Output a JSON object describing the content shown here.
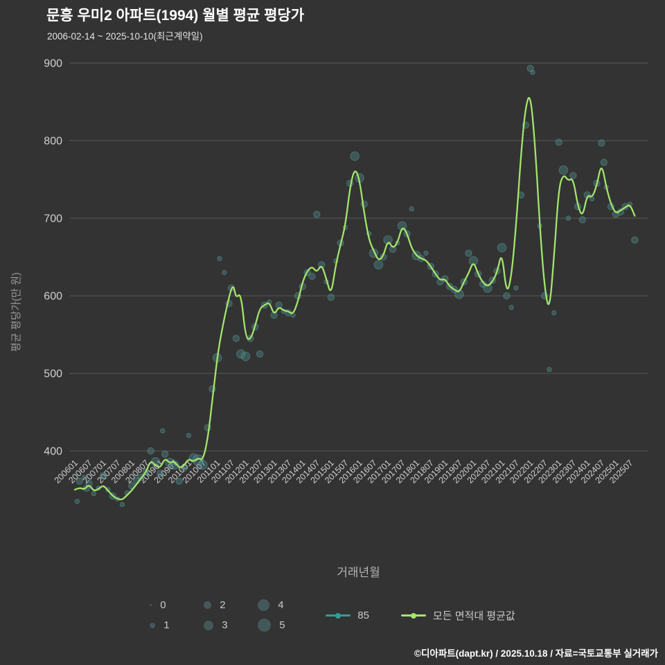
{
  "header": {
    "title": "문흥 우미2 아파트(1994) 월별 평균 평당가",
    "subtitle": "2006-02-14 ~ 2025-10-10(최근계약일)"
  },
  "axes": {
    "x_title": "거래년월",
    "y_title": "평균 평당가(만 원)"
  },
  "legend": {
    "sizes": [
      "0",
      "1",
      "2",
      "3",
      "4",
      "5"
    ],
    "series": [
      {
        "label": "85",
        "color": "#2f9e96"
      },
      {
        "label": "모든 면적대 평균값",
        "color": "#a3e56b"
      }
    ]
  },
  "footer": {
    "credit": "©디아파트(dapt.kr) / 2025.10.18 / 자료=국토교통부 실거래가"
  },
  "colors": {
    "background": "#333333",
    "grid": "#575757",
    "tick_text": "#d0d0d0",
    "bubble_fill": "rgba(73,139,139,0.42)",
    "bubble_stroke": "rgba(130,200,200,0.30)",
    "avg_line": "#a3e56b"
  },
  "chart_data": {
    "type": "line",
    "title": "문흥 우미2 아파트(1994) 월별 평균 평당가",
    "subtitle": "2006-02-14 ~ 2025-10-10(최근계약일)",
    "xlabel": "거래년월",
    "ylabel": "평균 평당가(만 원)",
    "ylim": [
      300,
      910
    ],
    "yticks": [
      400,
      500,
      600,
      700,
      800,
      900
    ],
    "grid": true,
    "legend_position": "bottom",
    "xticks": [
      "200601",
      "200607",
      "200701",
      "200707",
      "200801",
      "200807",
      "200901",
      "200907",
      "201001",
      "201007",
      "201101",
      "201107",
      "201201",
      "201207",
      "201301",
      "201307",
      "201401",
      "201407",
      "201501",
      "201507",
      "201601",
      "201607",
      "201701",
      "201707",
      "201801",
      "201807",
      "201901",
      "201907",
      "202001",
      "202007",
      "202101",
      "202107",
      "202201",
      "202207",
      "202301",
      "202307",
      "202401",
      "202407",
      "202501",
      "202507"
    ],
    "series": [
      {
        "name": "85",
        "type": "bubble",
        "note": "bubble size = transaction count 0-5",
        "points": [
          [
            "200602",
            335,
            1
          ],
          [
            "200603",
            361,
            2
          ],
          [
            "200605",
            366,
            1
          ],
          [
            "200606",
            352,
            2
          ],
          [
            "200607",
            358,
            2
          ],
          [
            "200609",
            345,
            1
          ],
          [
            "200611",
            352,
            1
          ],
          [
            "200701",
            368,
            2
          ],
          [
            "200703",
            350,
            1
          ],
          [
            "200705",
            342,
            2
          ],
          [
            "200707",
            338,
            1
          ],
          [
            "200709",
            331,
            1
          ],
          [
            "200711",
            346,
            1
          ],
          [
            "200801",
            355,
            2
          ],
          [
            "200803",
            362,
            2
          ],
          [
            "200805",
            366,
            2
          ],
          [
            "200807",
            373,
            2
          ],
          [
            "200809",
            400,
            2
          ],
          [
            "200811",
            386,
            3
          ],
          [
            "200901",
            371,
            2
          ],
          [
            "200902",
            426,
            1
          ],
          [
            "200903",
            396,
            2
          ],
          [
            "200905",
            385,
            3
          ],
          [
            "200907",
            382,
            3
          ],
          [
            "200909",
            361,
            2
          ],
          [
            "200911",
            378,
            2
          ],
          [
            "201001",
            420,
            1
          ],
          [
            "201003",
            391,
            3
          ],
          [
            "201005",
            388,
            4
          ],
          [
            "201007",
            382,
            3
          ],
          [
            "201009",
            430,
            2
          ],
          [
            "201011",
            480,
            2
          ],
          [
            "201101",
            520,
            3
          ],
          [
            "201102",
            648,
            1
          ],
          [
            "201104",
            630,
            1
          ],
          [
            "201106",
            590,
            2
          ],
          [
            "201107",
            610,
            2
          ],
          [
            "201109",
            545,
            2
          ],
          [
            "201111",
            525,
            3
          ],
          [
            "201201",
            522,
            3
          ],
          [
            "201203",
            545,
            2
          ],
          [
            "201205",
            560,
            2
          ],
          [
            "201207",
            525,
            2
          ],
          [
            "201209",
            588,
            2
          ],
          [
            "201211",
            592,
            1
          ],
          [
            "201301",
            575,
            2
          ],
          [
            "201303",
            588,
            2
          ],
          [
            "201305",
            580,
            1
          ],
          [
            "201307",
            578,
            2
          ],
          [
            "201309",
            575,
            1
          ],
          [
            "201311",
            600,
            2
          ],
          [
            "201401",
            612,
            2
          ],
          [
            "201403",
            630,
            2
          ],
          [
            "201405",
            625,
            2
          ],
          [
            "201407",
            705,
            2
          ],
          [
            "201409",
            640,
            2
          ],
          [
            "201411",
            618,
            1
          ],
          [
            "201501",
            598,
            2
          ],
          [
            "201503",
            645,
            1
          ],
          [
            "201505",
            668,
            2
          ],
          [
            "201507",
            688,
            1
          ],
          [
            "201509",
            745,
            2
          ],
          [
            "201511",
            780,
            3
          ],
          [
            "201601",
            752,
            3
          ],
          [
            "201603",
            718,
            2
          ],
          [
            "201605",
            680,
            1
          ],
          [
            "201607",
            655,
            3
          ],
          [
            "201609",
            640,
            3
          ],
          [
            "201611",
            650,
            2
          ],
          [
            "201701",
            672,
            3
          ],
          [
            "201703",
            660,
            2
          ],
          [
            "201705",
            668,
            1
          ],
          [
            "201707",
            690,
            3
          ],
          [
            "201709",
            680,
            2
          ],
          [
            "201711",
            712,
            1
          ],
          [
            "201801",
            652,
            3
          ],
          [
            "201803",
            648,
            2
          ],
          [
            "201805",
            655,
            1
          ],
          [
            "201807",
            638,
            2
          ],
          [
            "201809",
            628,
            2
          ],
          [
            "201811",
            618,
            2
          ],
          [
            "201901",
            622,
            2
          ],
          [
            "201903",
            612,
            2
          ],
          [
            "201905",
            608,
            2
          ],
          [
            "201907",
            602,
            3
          ],
          [
            "201909",
            618,
            2
          ],
          [
            "201911",
            655,
            2
          ],
          [
            "202001",
            645,
            3
          ],
          [
            "202003",
            628,
            2
          ],
          [
            "202005",
            615,
            2
          ],
          [
            "202007",
            610,
            3
          ],
          [
            "202009",
            620,
            2
          ],
          [
            "202011",
            632,
            2
          ],
          [
            "202101",
            662,
            3
          ],
          [
            "202103",
            600,
            2
          ],
          [
            "202105",
            585,
            1
          ],
          [
            "202107",
            610,
            1
          ],
          [
            "202109",
            730,
            2
          ],
          [
            "202111",
            820,
            2
          ],
          [
            "202201",
            893,
            2
          ],
          [
            "202202",
            888,
            1
          ],
          [
            "202205",
            690,
            1
          ],
          [
            "202207",
            600,
            2
          ],
          [
            "202209",
            505,
            1
          ],
          [
            "202211",
            578,
            1
          ],
          [
            "202301",
            798,
            2
          ],
          [
            "202303",
            762,
            3
          ],
          [
            "202305",
            700,
            1
          ],
          [
            "202307",
            755,
            2
          ],
          [
            "202309",
            715,
            2
          ],
          [
            "202311",
            698,
            2
          ],
          [
            "202401",
            730,
            2
          ],
          [
            "202403",
            725,
            1
          ],
          [
            "202405",
            745,
            2
          ],
          [
            "202407",
            797,
            2
          ],
          [
            "202408",
            772,
            2
          ],
          [
            "202409",
            740,
            1
          ],
          [
            "202411",
            715,
            2
          ],
          [
            "202501",
            705,
            2
          ],
          [
            "202503",
            708,
            2
          ],
          [
            "202505",
            715,
            2
          ],
          [
            "202507",
            718,
            1
          ],
          [
            "202509",
            672,
            2
          ]
        ]
      },
      {
        "name": "모든 면적대 평균값",
        "type": "line",
        "points": [
          [
            "200601",
            350
          ],
          [
            "200603",
            353
          ],
          [
            "200605",
            350
          ],
          [
            "200607",
            357
          ],
          [
            "200609",
            348
          ],
          [
            "200611",
            351
          ],
          [
            "200701",
            356
          ],
          [
            "200703",
            349
          ],
          [
            "200705",
            342
          ],
          [
            "200707",
            338
          ],
          [
            "200709",
            337
          ],
          [
            "200711",
            343
          ],
          [
            "200801",
            349
          ],
          [
            "200803",
            357
          ],
          [
            "200805",
            365
          ],
          [
            "200807",
            373
          ],
          [
            "200809",
            388
          ],
          [
            "200811",
            381
          ],
          [
            "200901",
            378
          ],
          [
            "200903",
            391
          ],
          [
            "200905",
            384
          ],
          [
            "200907",
            387
          ],
          [
            "200909",
            378
          ],
          [
            "200911",
            381
          ],
          [
            "201001",
            390
          ],
          [
            "201003",
            386
          ],
          [
            "201005",
            391
          ],
          [
            "201007",
            388
          ],
          [
            "201009",
            415
          ],
          [
            "201011",
            465
          ],
          [
            "201101",
            520
          ],
          [
            "201103",
            556
          ],
          [
            "201105",
            585
          ],
          [
            "201107",
            610
          ],
          [
            "201108",
            612
          ],
          [
            "201109",
            597
          ],
          [
            "201111",
            604
          ],
          [
            "201201",
            546
          ],
          [
            "201203",
            543
          ],
          [
            "201205",
            561
          ],
          [
            "201207",
            584
          ],
          [
            "201209",
            588
          ],
          [
            "201211",
            592
          ],
          [
            "201301",
            575
          ],
          [
            "201303",
            586
          ],
          [
            "201305",
            581
          ],
          [
            "201307",
            580
          ],
          [
            "201309",
            576
          ],
          [
            "201311",
            592
          ],
          [
            "201401",
            618
          ],
          [
            "201403",
            632
          ],
          [
            "201405",
            638
          ],
          [
            "201407",
            630
          ],
          [
            "201409",
            641
          ],
          [
            "201411",
            622
          ],
          [
            "201501",
            600
          ],
          [
            "201503",
            640
          ],
          [
            "201505",
            666
          ],
          [
            "201507",
            690
          ],
          [
            "201509",
            740
          ],
          [
            "201511",
            765
          ],
          [
            "201601",
            750
          ],
          [
            "201603",
            706
          ],
          [
            "201605",
            672
          ],
          [
            "201607",
            658
          ],
          [
            "201609",
            645
          ],
          [
            "201611",
            651
          ],
          [
            "201701",
            672
          ],
          [
            "201703",
            661
          ],
          [
            "201705",
            668
          ],
          [
            "201707",
            690
          ],
          [
            "201709",
            681
          ],
          [
            "201711",
            661
          ],
          [
            "201801",
            652
          ],
          [
            "201803",
            648
          ],
          [
            "201805",
            646
          ],
          [
            "201807",
            638
          ],
          [
            "201809",
            628
          ],
          [
            "201811",
            620
          ],
          [
            "201901",
            622
          ],
          [
            "201903",
            612
          ],
          [
            "201905",
            608
          ],
          [
            "201907",
            604
          ],
          [
            "201909",
            618
          ],
          [
            "201911",
            629
          ],
          [
            "202001",
            645
          ],
          [
            "202003",
            628
          ],
          [
            "202005",
            617
          ],
          [
            "202007",
            612
          ],
          [
            "202009",
            618
          ],
          [
            "202011",
            630
          ],
          [
            "202101",
            658
          ],
          [
            "202103",
            601
          ],
          [
            "202105",
            624
          ],
          [
            "202107",
            690
          ],
          [
            "202109",
            780
          ],
          [
            "202111",
            845
          ],
          [
            "202201",
            862
          ],
          [
            "202203",
            795
          ],
          [
            "202205",
            690
          ],
          [
            "202207",
            610
          ],
          [
            "202209",
            578
          ],
          [
            "202211",
            650
          ],
          [
            "202301",
            740
          ],
          [
            "202303",
            757
          ],
          [
            "202305",
            748
          ],
          [
            "202307",
            752
          ],
          [
            "202309",
            716
          ],
          [
            "202311",
            701
          ],
          [
            "202401",
            731
          ],
          [
            "202403",
            726
          ],
          [
            "202405",
            742
          ],
          [
            "202407",
            772
          ],
          [
            "202409",
            740
          ],
          [
            "202411",
            718
          ],
          [
            "202501",
            706
          ],
          [
            "202503",
            710
          ],
          [
            "202505",
            714
          ],
          [
            "202507",
            718
          ],
          [
            "202509",
            703
          ]
        ]
      }
    ]
  }
}
